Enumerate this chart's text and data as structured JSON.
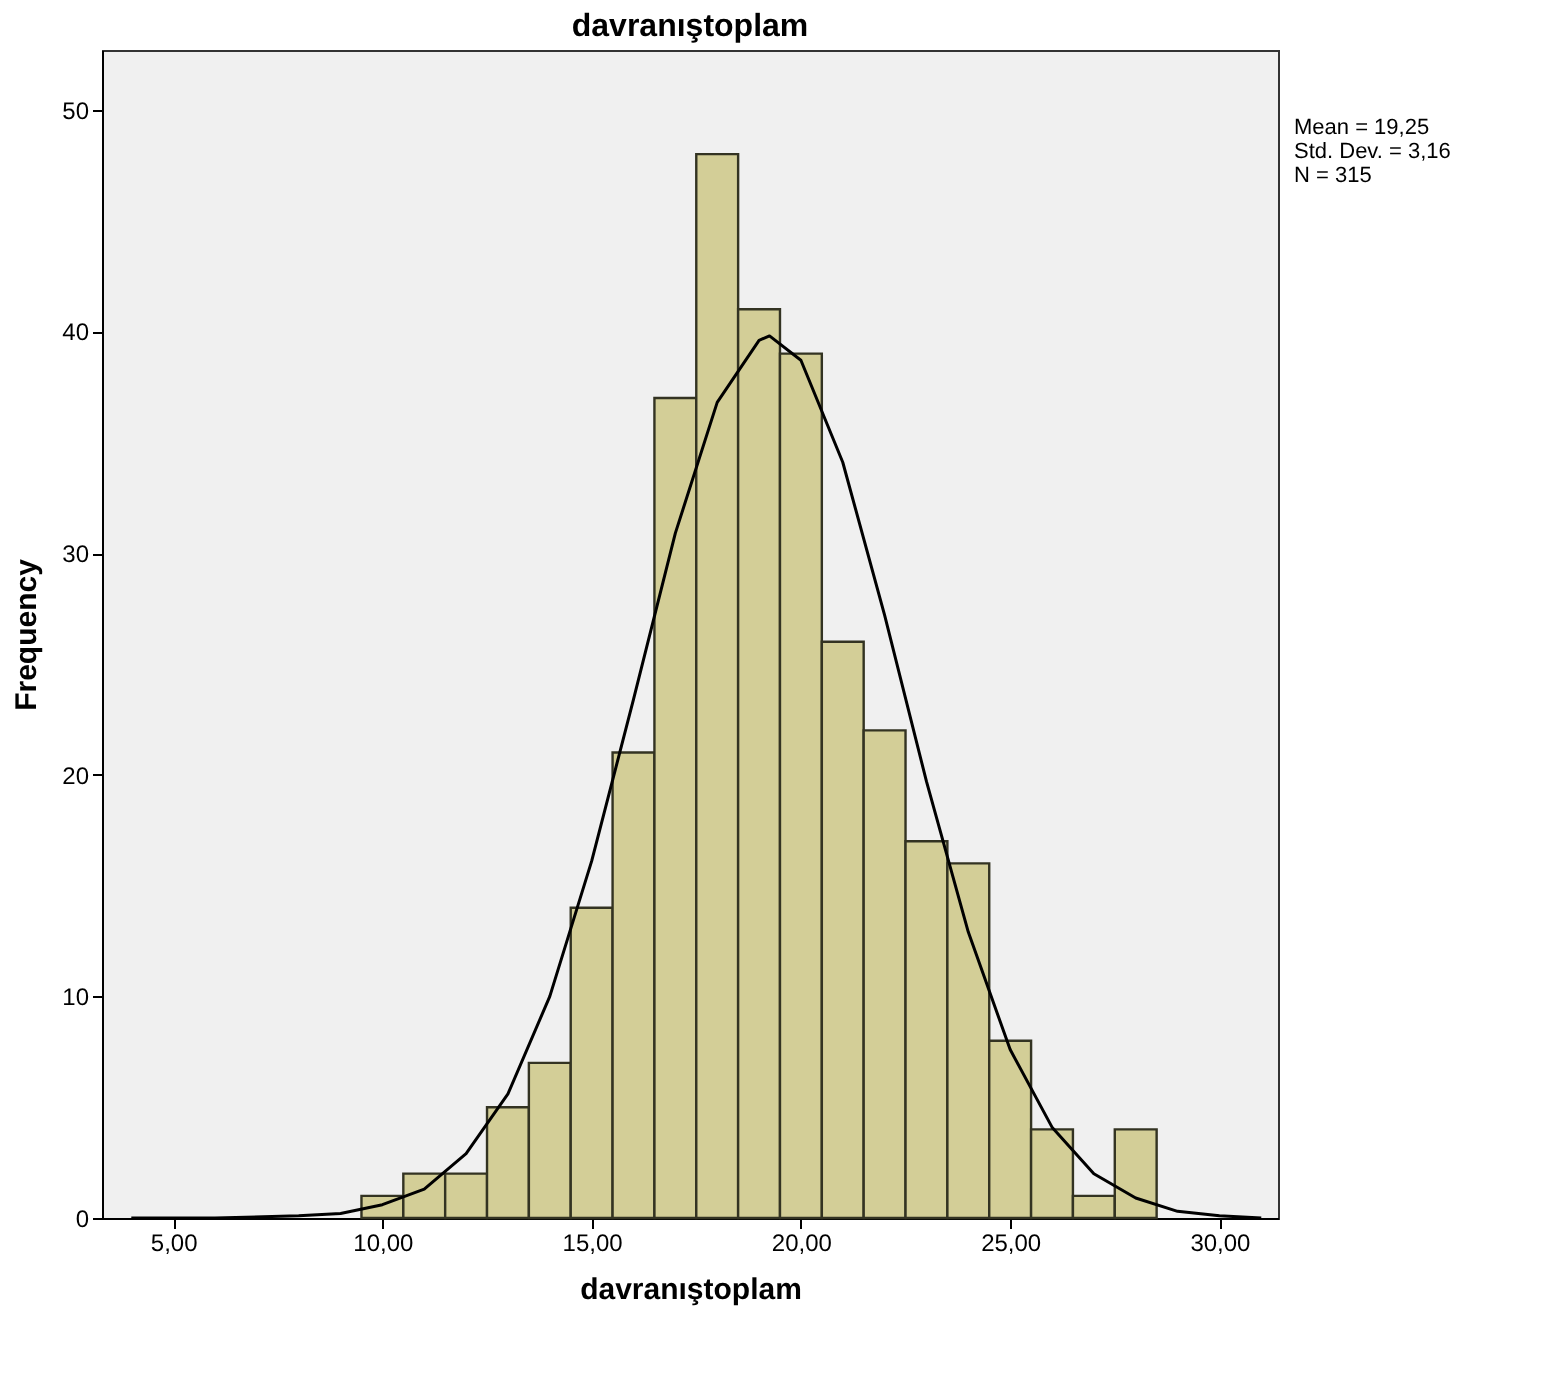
{
  "chart_data": {
    "type": "histogram",
    "title": "davranıştoplam",
    "xlabel": "davranıştoplam",
    "ylabel": "Frequency",
    "bins": [
      9.5,
      10.5,
      11.5,
      12.5,
      13.5,
      14.5,
      15.5,
      16.5,
      17.5,
      18.5,
      19.5,
      20.5,
      21.5,
      22.5,
      23.5,
      24.5,
      25.5,
      26.5,
      27.5,
      28.5
    ],
    "values": [
      1,
      2,
      2,
      5,
      7,
      14,
      21,
      37,
      48,
      41,
      39,
      26,
      22,
      17,
      16,
      8,
      4,
      1,
      4
    ],
    "color": "#d3ce97",
    "series": [
      {
        "type": "line",
        "color": "#000000",
        "x": [
          4,
          6,
          8,
          9,
          10,
          11,
          12,
          13,
          14,
          15,
          16,
          17,
          18,
          19,
          19.25,
          20,
          21,
          22,
          23,
          24,
          25,
          26,
          27,
          28,
          29,
          30,
          31
        ],
        "values": [
          0,
          0,
          0.1,
          0.2,
          0.6,
          1.3,
          2.9,
          5.6,
          10,
          16.1,
          23.4,
          30.9,
          36.8,
          39.6,
          39.8,
          38.7,
          34.1,
          27.2,
          19.7,
          12.9,
          7.6,
          4.1,
          2,
          0.9,
          0.3,
          0.1,
          0
        ]
      }
    ],
    "xlim": [
      3.3,
      31.4
    ],
    "ylim": [
      0,
      52.7
    ],
    "xticks": [
      {
        "value": 5,
        "label": "5,00"
      },
      {
        "value": 10,
        "label": "10,00"
      },
      {
        "value": 15,
        "label": "15,00"
      },
      {
        "value": 20,
        "label": "20,00"
      },
      {
        "value": 25,
        "label": "25,00"
      },
      {
        "value": 30,
        "label": "30,00"
      }
    ],
    "yticks": [
      0,
      10,
      20,
      30,
      40,
      50
    ],
    "grid": false,
    "annotations": [
      "Mean = 19,25",
      "Std. Dev. = 3,16",
      "N = 315"
    ]
  }
}
